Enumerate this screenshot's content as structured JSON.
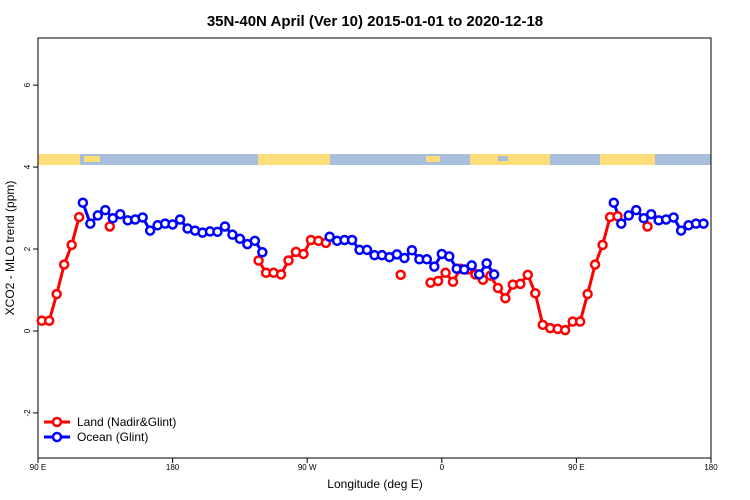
{
  "chart_data": {
    "type": "line",
    "title": "35N-40N April (Ver 10)   2015-01-01 to 2020-12-18",
    "x_label": "Longitude (deg E)",
    "y_label": "XCO2 - MLO trend (ppm)",
    "xlim": [
      90,
      540
    ],
    "ylim": [
      -3.1,
      7.15
    ],
    "xticks": [
      {
        "value": 90,
        "label": "90 E"
      },
      180,
      {
        "value": 270,
        "label": "90 W"
      },
      {
        "value": 360,
        "label": "0"
      },
      {
        "value": 450,
        "label": "90 E"
      },
      {
        "value": 540,
        "label": "180"
      }
    ],
    "yticks": [
      -2,
      0,
      2,
      4,
      6
    ],
    "legend": "bottom-left",
    "series": [
      {
        "name": "Land (Nadir&Glint)",
        "color": "#ff0000",
        "x": [
          92.5,
          97.5,
          102.5,
          107.5,
          112.5,
          117.5,
          null,
          138,
          null,
          237.5,
          242.5,
          247.5,
          252.5,
          257.5,
          262.5,
          267.5,
          272.5,
          277.5,
          282.5,
          null,
          332.5,
          null,
          352.5,
          357.5,
          362.5,
          367.5,
          372.5,
          377.5,
          382.5,
          387.5,
          392.5,
          397.5,
          402.5,
          407.5,
          412.5,
          417.5,
          422.5,
          427.5,
          432.5,
          437.5,
          442.5,
          447.5,
          452.5,
          457.5,
          462.5,
          467.5,
          472.5,
          477.5,
          null,
          497.5
        ],
        "values": [
          0.25,
          0.25,
          0.9,
          1.62,
          2.1,
          2.78,
          null,
          2.55,
          null,
          1.72,
          1.42,
          1.42,
          1.38,
          1.72,
          1.93,
          1.88,
          2.22,
          2.2,
          2.15,
          null,
          1.37,
          null,
          1.18,
          1.22,
          1.42,
          1.2,
          1.52,
          1.5,
          1.38,
          1.25,
          1.35,
          1.05,
          0.8,
          1.13,
          1.15,
          1.37,
          0.92,
          0.15,
          0.07,
          0.05,
          0.02,
          0.23,
          0.23,
          0.9,
          1.62,
          2.1,
          2.78,
          2.8,
          null,
          2.55
        ]
      },
      {
        "name": "Ocean (Glint)",
        "color": "#0000ff",
        "x": [
          120,
          125,
          130,
          135,
          140,
          145,
          150,
          155,
          160,
          165,
          170,
          175,
          180,
          185,
          190,
          195,
          200,
          205,
          210,
          215,
          220,
          225,
          230,
          235,
          240,
          null,
          285,
          290,
          295,
          300,
          305,
          310,
          315,
          320,
          325,
          330,
          335,
          340,
          345,
          350,
          355,
          360,
          365,
          370,
          375,
          380,
          385,
          390,
          395,
          null,
          475,
          480,
          485,
          490,
          495,
          500,
          505,
          510,
          515,
          520,
          525,
          530,
          535
        ],
        "values": [
          3.13,
          2.62,
          2.82,
          2.95,
          2.75,
          2.85,
          2.7,
          2.72,
          2.77,
          2.45,
          2.58,
          2.62,
          2.6,
          2.72,
          2.5,
          2.45,
          2.4,
          2.43,
          2.42,
          2.55,
          2.35,
          2.25,
          2.12,
          2.2,
          1.92,
          null,
          2.3,
          2.2,
          2.22,
          2.22,
          1.98,
          1.98,
          1.85,
          1.85,
          1.8,
          1.87,
          1.78,
          1.97,
          1.75,
          1.75,
          1.57,
          1.88,
          1.82,
          1.52,
          1.5,
          1.6,
          1.38,
          1.65,
          1.38,
          null,
          3.13,
          2.62,
          2.82,
          2.95,
          2.75,
          2.85,
          2.7,
          2.72,
          2.77,
          2.45,
          2.58,
          2.62,
          2.62
        ]
      }
    ]
  }
}
